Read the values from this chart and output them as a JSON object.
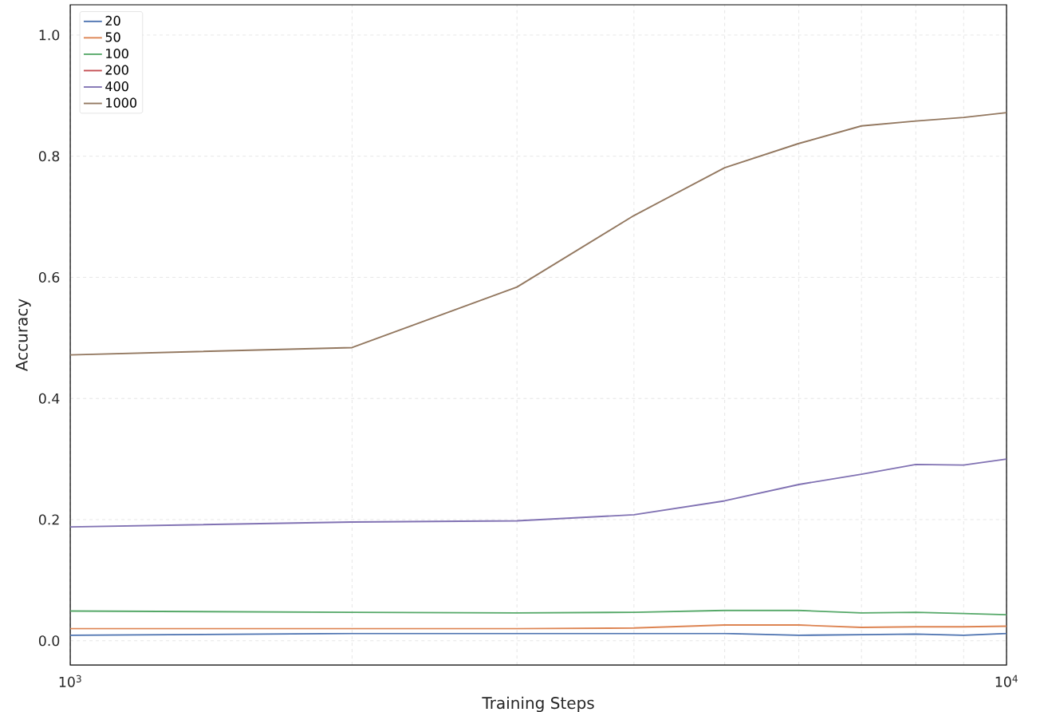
{
  "chart_data": {
    "type": "line",
    "xlabel": "Training Steps",
    "ylabel": "Accuracy",
    "x": [
      1000,
      2000,
      3000,
      4000,
      5000,
      6000,
      7000,
      8000,
      9000,
      10000
    ],
    "series": [
      {
        "name": "20",
        "color": "#4c72b0",
        "values": [
          0.009,
          0.012,
          0.012,
          0.012,
          0.012,
          0.009,
          0.01,
          0.011,
          0.009,
          0.012
        ]
      },
      {
        "name": "50",
        "color": "#dd8452",
        "values": [
          0.02,
          0.02,
          0.02,
          0.021,
          0.026,
          0.026,
          0.022,
          0.023,
          0.023,
          0.024
        ]
      },
      {
        "name": "100",
        "color": "#55a868",
        "values": [
          0.049,
          0.047,
          0.046,
          0.047,
          0.05,
          0.05,
          0.046,
          0.047,
          0.045,
          0.043
        ]
      },
      {
        "name": "200",
        "color": "#c44e52",
        "values": [
          null,
          null,
          null,
          null,
          null,
          null,
          null,
          null,
          null,
          null
        ]
      },
      {
        "name": "400",
        "color": "#8172b3",
        "values": [
          0.188,
          0.196,
          0.198,
          0.208,
          0.231,
          0.258,
          0.275,
          0.291,
          0.29,
          0.3
        ]
      },
      {
        "name": "1000",
        "color": "#937860",
        "values": [
          0.472,
          0.484,
          0.584,
          0.702,
          0.781,
          0.821,
          0.85,
          0.858,
          0.864,
          0.872
        ]
      }
    ],
    "log": "x",
    "xlim": [
      1000,
      10000
    ],
    "ylim": [
      -0.04,
      1.05
    ],
    "xticks": [
      {
        "value": 1000,
        "label": "10$^{3}$"
      },
      {
        "value": 10000,
        "label": "10$^{4}$"
      }
    ],
    "yticks": [
      {
        "value": 0,
        "label": "0.0"
      },
      {
        "value": 0.2,
        "label": "0.2"
      },
      {
        "value": 0.4,
        "label": "0.4"
      },
      {
        "value": 0.6,
        "label": "0.6"
      },
      {
        "value": 0.8,
        "label": "0.8"
      },
      {
        "value": 1.0,
        "label": "1.0"
      }
    ],
    "grid": true,
    "legend": "top left",
    "marker": "none",
    "line_style": "solid"
  }
}
